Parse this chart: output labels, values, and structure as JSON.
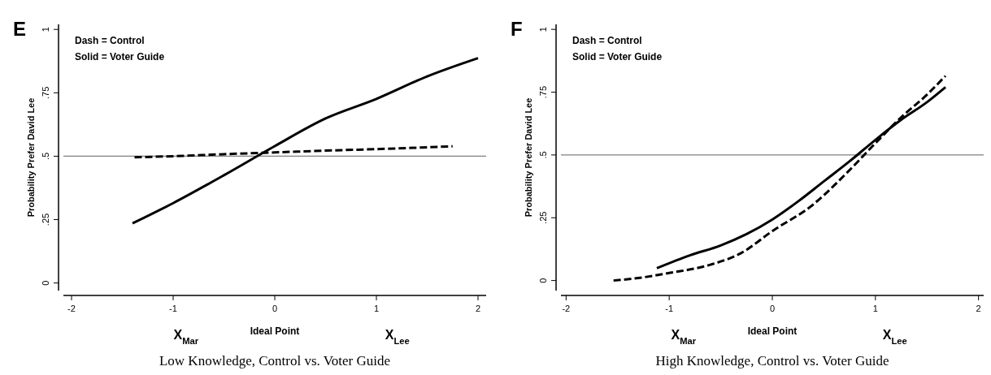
{
  "chart_data": [
    {
      "type": "line",
      "title": "Low Knowledge, Control vs. Voter Guide",
      "xlabel": "Ideal Point",
      "ylabel": "Probability Prefer David Lee",
      "xlim": [
        -2.08,
        2.08
      ],
      "xticks": [
        -2,
        -1,
        0,
        1,
        2
      ],
      "ylim": [
        -0.03,
        1.02
      ],
      "yticks": [
        {
          "value": 0,
          "label": "0"
        },
        {
          "value": 0.25,
          "label": ".25"
        },
        {
          "value": 0.5,
          "label": ".5"
        },
        {
          "value": 0.75,
          "label": ".75"
        },
        {
          "value": 1,
          "label": "1"
        }
      ],
      "series": [
        {
          "color": "#000000",
          "line_style": "dashed",
          "x": [
            -1.38,
            -1,
            -0.5,
            0,
            0.5,
            1,
            1.5,
            1.75
          ],
          "values": [
            0.496,
            0.5,
            0.508,
            0.515,
            0.522,
            0.528,
            0.535,
            0.539
          ]
        },
        {
          "color": "#000000",
          "line_style": "solid",
          "x": [
            -1.4,
            -1,
            -0.5,
            0,
            0.5,
            1,
            1.5,
            2
          ],
          "values": [
            0.235,
            0.315,
            0.425,
            0.54,
            0.649,
            0.726,
            0.815,
            0.887
          ]
        }
      ],
      "ref_lines": [
        {
          "axis": "y",
          "value": 0.5,
          "color": "#808080"
        }
      ],
      "annotations": [
        "E",
        "Dash = Control",
        "Solid = Voter Guide",
        "X$_{Mar}$",
        "X$_{Lee}$"
      ],
      "grid": false
    },
    {
      "type": "line",
      "title": "High Knowledge, Control vs. Voter Guide",
      "xlabel": "Ideal Point",
      "ylabel": "Probability Prefer David Lee",
      "xlim": [
        -2.05,
        2.05
      ],
      "xticks": [
        -2,
        -1,
        0,
        1,
        2
      ],
      "ylim": [
        -0.04,
        1.02
      ],
      "yticks": [
        {
          "value": 0,
          "label": "0"
        },
        {
          "value": 0.25,
          "label": ".25"
        },
        {
          "value": 0.5,
          "label": ".5"
        },
        {
          "value": 0.75,
          "label": ".75"
        },
        {
          "value": 1,
          "label": "1"
        }
      ],
      "series": [
        {
          "color": "#000000",
          "line_style": "dashed",
          "x": [
            -1.54,
            -1.3,
            -1,
            -0.6,
            -0.3,
            0,
            0.4,
            0.5,
            0.75,
            1,
            1.25,
            1.5,
            1.68
          ],
          "values": [
            0,
            0.01,
            0.03,
            0.063,
            0.11,
            0.197,
            0.304,
            0.34,
            0.44,
            0.547,
            0.65,
            0.74,
            0.815
          ]
        },
        {
          "color": "#000000",
          "line_style": "solid",
          "x": [
            -1.12,
            -0.8,
            -0.5,
            -0.25,
            0,
            0.25,
            0.5,
            0.75,
            1,
            1.25,
            1.5,
            1.68
          ],
          "values": [
            0.049,
            0.1,
            0.14,
            0.185,
            0.243,
            0.315,
            0.395,
            0.475,
            0.56,
            0.64,
            0.71,
            0.77
          ]
        }
      ],
      "ref_lines": [
        {
          "axis": "y",
          "value": 0.5,
          "color": "#808080"
        }
      ],
      "annotations": [
        "F",
        "Dash = Control",
        "Solid = Voter Guide",
        "X$_{Mar}$",
        "X$_{Lee}$"
      ],
      "grid": false
    }
  ]
}
